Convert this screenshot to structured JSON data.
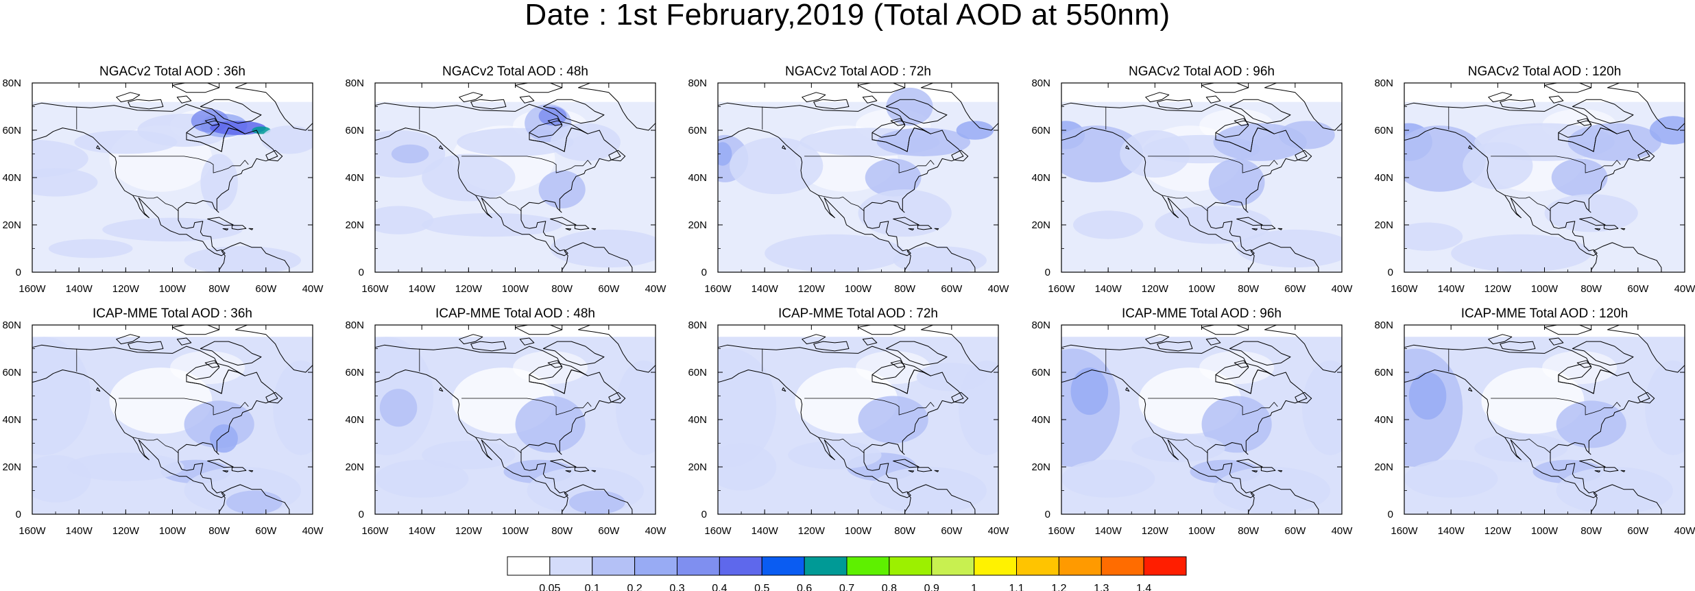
{
  "page": {
    "title": "Date : 1st February,2019 (Total AOD at 550nm)"
  },
  "map_axes": {
    "lon_ticks": [
      "160W",
      "140W",
      "120W",
      "100W",
      "80W",
      "60W",
      "40W"
    ],
    "lat_ticks": [
      "80N",
      "60N",
      "40N",
      "20N",
      "0"
    ],
    "lon_range": [
      -160,
      -40
    ],
    "lat_range": [
      0,
      80
    ]
  },
  "panels": [
    {
      "title": "NGACv2 Total AOD : 36h",
      "model": "NGACv2",
      "forecast_hour": "36h",
      "row": 0,
      "col": 0
    },
    {
      "title": "NGACv2 Total AOD : 48h",
      "model": "NGACv2",
      "forecast_hour": "48h",
      "row": 0,
      "col": 1
    },
    {
      "title": "NGACv2 Total AOD : 72h",
      "model": "NGACv2",
      "forecast_hour": "72h",
      "row": 0,
      "col": 2
    },
    {
      "title": "NGACv2 Total AOD : 96h",
      "model": "NGACv2",
      "forecast_hour": "96h",
      "row": 0,
      "col": 3
    },
    {
      "title": "NGACv2 Total AOD : 120h",
      "model": "NGACv2",
      "forecast_hour": "120h",
      "row": 0,
      "col": 4
    },
    {
      "title": "ICAP-MME Total AOD : 36h",
      "model": "ICAP-MME",
      "forecast_hour": "36h",
      "row": 1,
      "col": 0
    },
    {
      "title": "ICAP-MME Total AOD : 48h",
      "model": "ICAP-MME",
      "forecast_hour": "48h",
      "row": 1,
      "col": 1
    },
    {
      "title": "ICAP-MME Total AOD : 72h",
      "model": "ICAP-MME",
      "forecast_hour": "72h",
      "row": 1,
      "col": 2
    },
    {
      "title": "ICAP-MME Total AOD : 96h",
      "model": "ICAP-MME",
      "forecast_hour": "96h",
      "row": 1,
      "col": 3
    },
    {
      "title": "ICAP-MME Total AOD : 120h",
      "model": "ICAP-MME",
      "forecast_hour": "120h",
      "row": 1,
      "col": 4
    }
  ],
  "colorbar": {
    "labels": [
      "0.05",
      "0.1",
      "0.2",
      "0.3",
      "0.4",
      "0.5",
      "0.6",
      "0.7",
      "0.8",
      "0.9",
      "1",
      "1.1",
      "1.2",
      "1.3",
      "1.4"
    ],
    "colors": [
      "#ffffff",
      "#d4dcfa",
      "#b4c1f6",
      "#98abf4",
      "#7f8ff0",
      "#5e68ec",
      "#0a5cf2",
      "#009a96",
      "#5ef000",
      "#9cf000",
      "#c8f050",
      "#fff200",
      "#ffc400",
      "#ff9a00",
      "#ff6c00",
      "#ff1e00"
    ]
  },
  "field_colors": {
    "background": "#ffffff",
    "low": "#d4dcfa",
    "moderate": "#b4c1f6",
    "elevated": "#98abf4",
    "high": "#7f8ff0",
    "peak": "#5e68ec",
    "hotspot": "#009a96",
    "coast": "#000000"
  }
}
